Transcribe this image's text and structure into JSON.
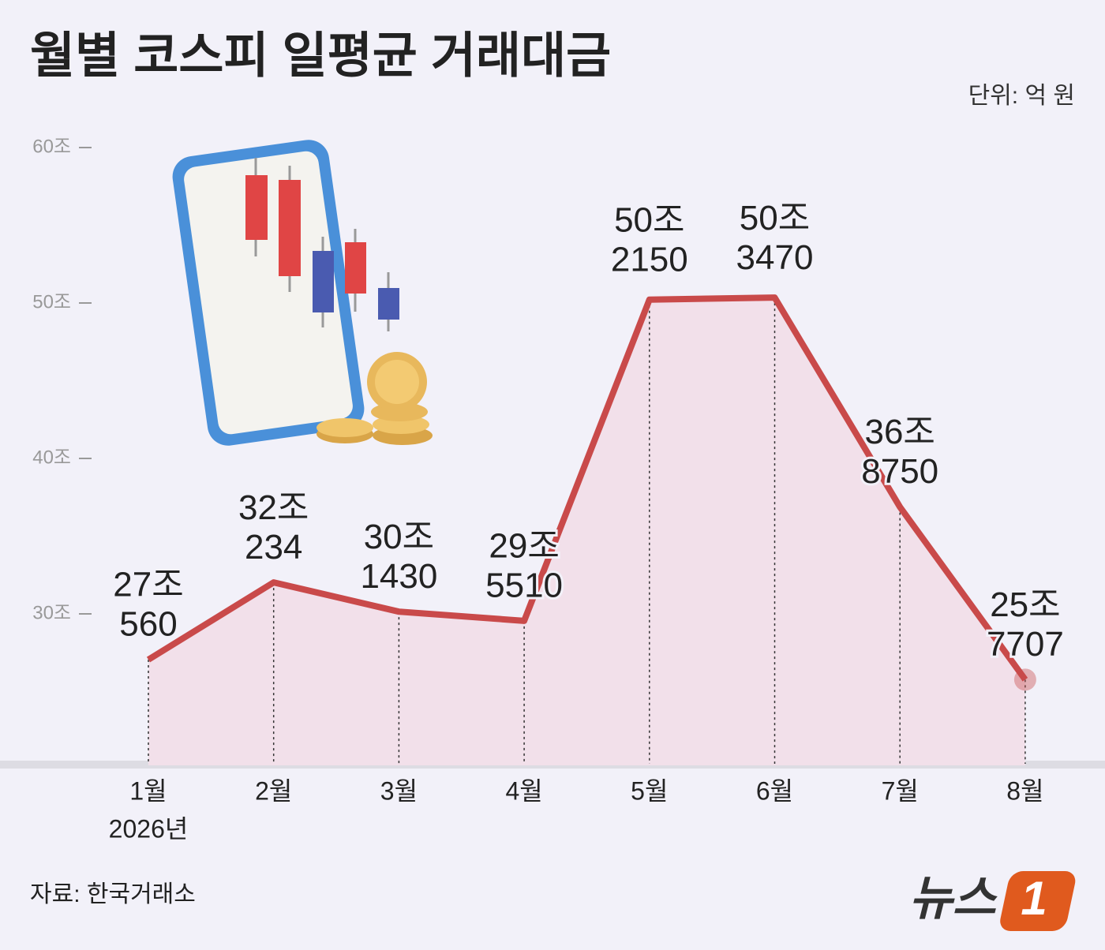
{
  "chart_data": {
    "type": "line",
    "title": "월별 코스피 일평균 거래대금",
    "unit": "단위: 억 원",
    "categories": [
      "1월",
      "2월",
      "3월",
      "4월",
      "5월",
      "6월",
      "7월",
      "8월"
    ],
    "year_label": "2026년",
    "series": [
      {
        "color": "#c94a4a",
        "fill": "#f2e0ea",
        "values": [
          270560,
          320234,
          301430,
          295510,
          502150,
          503470,
          368750,
          257707
        ],
        "value_labels": [
          [
            "27조",
            "560"
          ],
          [
            "32조",
            "234"
          ],
          [
            "30조",
            "1430"
          ],
          [
            "29조",
            "5510"
          ],
          [
            "50조",
            "2150"
          ],
          [
            "50조",
            "3470"
          ],
          [
            "36조",
            "8750"
          ],
          [
            "25조",
            "7707"
          ]
        ]
      }
    ],
    "ylim": [
      200000,
      600000
    ],
    "yticks": [
      {
        "value": 300000,
        "label": "30조"
      },
      {
        "value": 400000,
        "label": "40조"
      },
      {
        "value": 500000,
        "label": "50조"
      },
      {
        "value": 600000,
        "label": "60조"
      }
    ],
    "source": "자료: 한국거래소",
    "logo": {
      "text": "뉴스",
      "badge": "1"
    }
  }
}
